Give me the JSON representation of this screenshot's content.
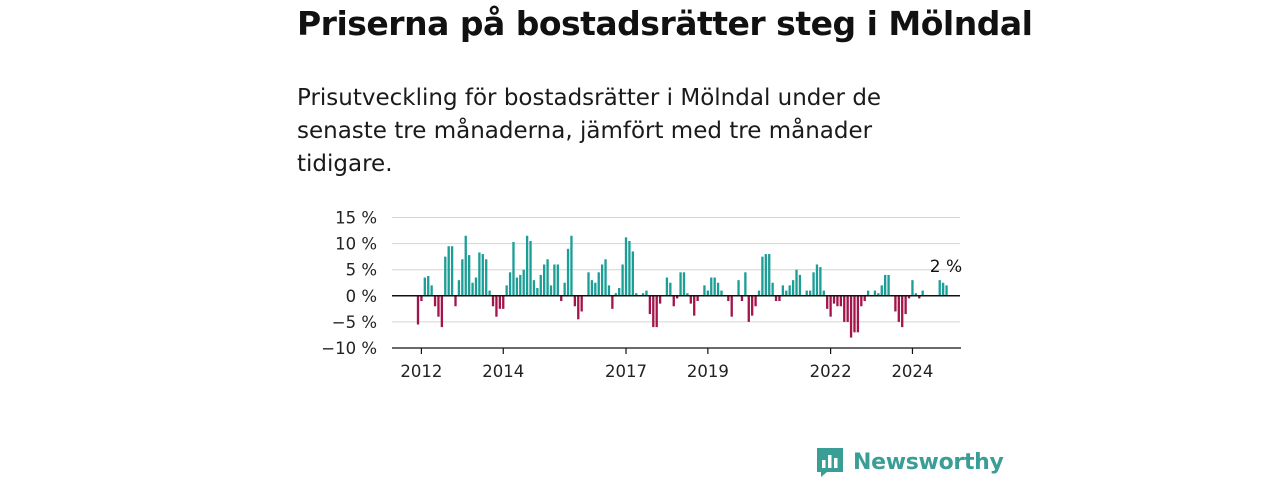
{
  "title": "Priserna på bostadsrätter steg i Mölndal",
  "subtitle": "Prisutveckling för bostadsrätter i Mölndal under de senaste tre månaderna, jämfört med tre månader tidigare.",
  "brand": {
    "name": "Newsworthy",
    "color": "#3b9e96"
  },
  "chart_data": {
    "type": "bar",
    "ylim": [
      -10,
      15
    ],
    "yticks": [
      15,
      10,
      5,
      0,
      -5,
      -10
    ],
    "ytick_labels": [
      "15 %",
      "10 %",
      "5 %",
      "0 %",
      "−5 %",
      "−10 %"
    ],
    "xticks": [
      {
        "label": "2012",
        "index": 1
      },
      {
        "label": "2014",
        "index": 25
      },
      {
        "label": "2017",
        "index": 61
      },
      {
        "label": "2019",
        "index": 85
      },
      {
        "label": "2022",
        "index": 121
      },
      {
        "label": "2024",
        "index": 145
      }
    ],
    "positive_color": "#1b9e96",
    "negative_color": "#a3154a",
    "grid": true,
    "annotation": {
      "text": "2 %",
      "index": 156
    },
    "values": [
      -5.5,
      -1,
      3.5,
      3.8,
      2,
      -2,
      -4,
      -6,
      7.5,
      9.5,
      9.5,
      -2,
      3,
      7,
      11.5,
      7.8,
      2.5,
      3.5,
      8.3,
      8,
      7,
      1,
      -2,
      -4,
      -2.5,
      -2.5,
      2,
      4.5,
      10.3,
      3.5,
      4,
      5,
      11.5,
      10.5,
      3,
      1.5,
      4,
      6,
      7,
      2,
      6,
      6,
      -1,
      2.5,
      9,
      11.5,
      -2,
      -4.5,
      -3,
      0,
      4.5,
      3,
      2.5,
      4.5,
      6,
      7,
      2,
      -2.5,
      0.5,
      1.5,
      6,
      11.2,
      10.5,
      8.5,
      0.5,
      0,
      0.5,
      1,
      -3.5,
      -6,
      -6,
      -1.5,
      0,
      3.5,
      2.5,
      -2,
      -0.5,
      4.5,
      4.5,
      0.5,
      -1.5,
      -3.8,
      -1,
      0,
      2,
      1,
      3.5,
      3.5,
      2.5,
      1,
      0,
      -1,
      -4,
      0,
      3,
      -1,
      4.5,
      -5,
      -3.8,
      -2,
      1,
      7.5,
      8,
      8,
      2.5,
      -1,
      -1,
      2,
      1,
      2,
      3,
      5,
      4,
      0,
      1,
      1,
      4.5,
      6,
      5.5,
      1,
      -2.5,
      -4,
      -1.5,
      -2,
      -2,
      -5,
      -5,
      -8,
      -7,
      -7,
      -2,
      -1,
      1,
      0,
      1,
      0.5,
      2,
      4,
      4,
      0,
      -3,
      -5,
      -6,
      -3.5,
      -0.5,
      3,
      0.5,
      -0.5,
      1,
      0,
      0,
      0,
      0,
      3,
      2.5,
      2
    ]
  }
}
